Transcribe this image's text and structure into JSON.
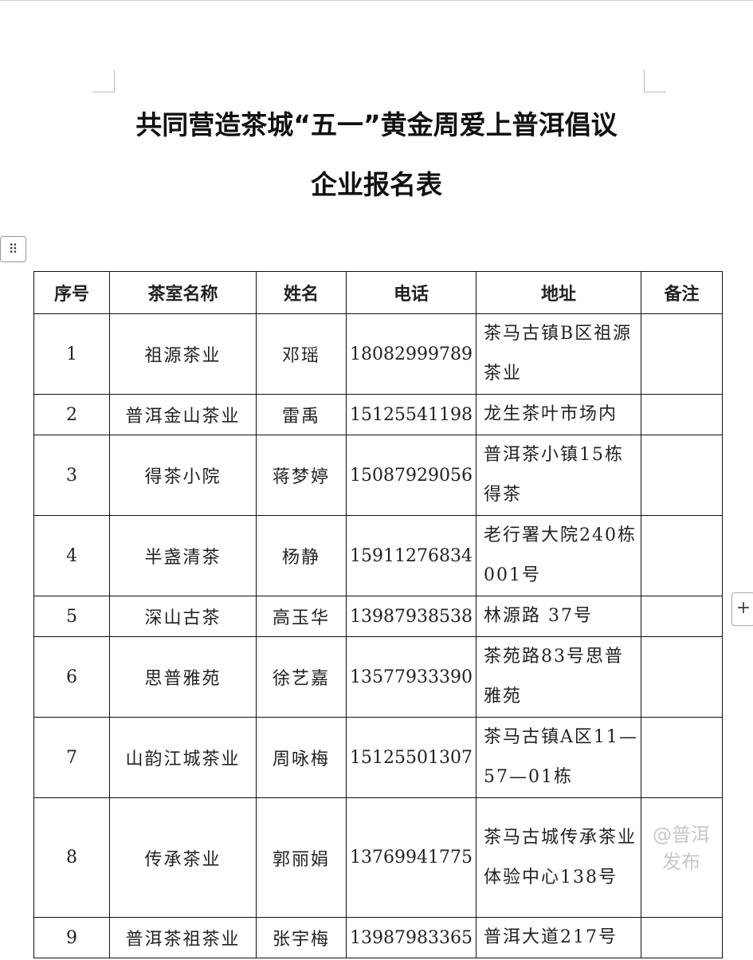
{
  "title": "共同营造茶城“五一”黄金周爱上普洱倡议",
  "subtitle": "企业报名表",
  "table": {
    "headers": [
      "序号",
      "茶室名称",
      "姓名",
      "电话",
      "地址",
      "备注"
    ],
    "rows": [
      {
        "no": "1",
        "name": "祖源茶业",
        "person": "邓瑶",
        "phone": "18082999789",
        "address": "茶马古镇B区祖源茶业",
        "note": ""
      },
      {
        "no": "2",
        "name": "普洱金山茶业",
        "person": "雷禹",
        "phone": "15125541198",
        "address": "龙生茶叶市场内",
        "note": ""
      },
      {
        "no": "3",
        "name": "得茶小院",
        "person": "蒋梦婷",
        "phone": "15087929056",
        "address": "普洱茶小镇15栋得茶",
        "note": ""
      },
      {
        "no": "4",
        "name": "半盏清茶",
        "person": "杨静",
        "phone": "15911276834",
        "address": "老行署大院240栋001号",
        "note": ""
      },
      {
        "no": "5",
        "name": "深山古茶",
        "person": "高玉华",
        "phone": "13987938538",
        "address": "林源路 37号",
        "note": ""
      },
      {
        "no": "6",
        "name": "思普雅苑",
        "person": "徐艺嘉",
        "phone": "13577933390",
        "address": "茶苑路83号思普雅苑",
        "note": ""
      },
      {
        "no": "7",
        "name": "山韵江城茶业",
        "person": "周咏梅",
        "phone": "15125501307",
        "address": "茶马古镇A区11—57—01栋",
        "note": ""
      },
      {
        "no": "8",
        "name": "传承茶业",
        "person": "郭丽娟",
        "phone": "13769941775",
        "address": "茶马古城传承茶业体验中心138号",
        "note": ""
      },
      {
        "no": "9",
        "name": "普洱茶祖茶业",
        "person": "张宇梅",
        "phone": "13987983365",
        "address": "普洱大道217号",
        "note": ""
      }
    ]
  },
  "watermark": "@普洱发布",
  "icons": {
    "table_handle": "grip-icon",
    "add": "plus-icon"
  }
}
